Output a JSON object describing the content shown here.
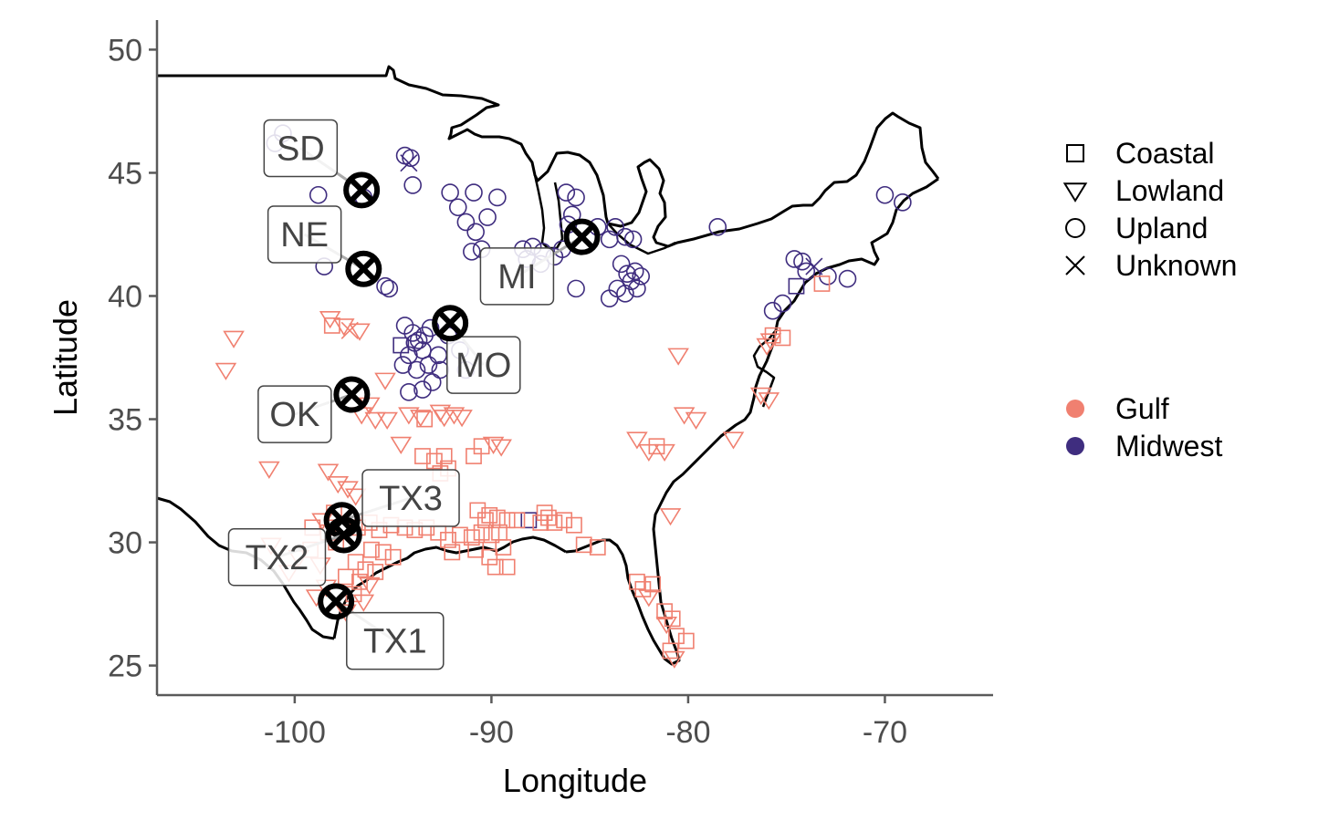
{
  "chart_data": {
    "type": "scatter",
    "xlabel": "Longitude",
    "ylabel": "Latitude",
    "xlim": [
      -107,
      -64.5
    ],
    "ylim": [
      23.8,
      51.2
    ],
    "xticks": [
      -100,
      -90,
      -80,
      -70
    ],
    "yticks": [
      25,
      30,
      35,
      40,
      45,
      50
    ],
    "grid": false,
    "colors": {
      "Gulf": "#f08070",
      "Midwest": "#3f2d7f",
      "sites": "#000000",
      "map": "#000000"
    },
    "legend_shapes": {
      "placement": "right",
      "entries": [
        {
          "label": "Coastal",
          "shape": "square"
        },
        {
          "label": "Lowland",
          "shape": "triangle-down"
        },
        {
          "label": "Upland",
          "shape": "circle"
        },
        {
          "label": "Unknown",
          "shape": "cross"
        }
      ]
    },
    "legend_colors": {
      "placement": "right",
      "entries": [
        {
          "label": "Gulf",
          "color": "#f08070"
        },
        {
          "label": "Midwest",
          "color": "#3f2d7f"
        }
      ]
    },
    "sites": [
      {
        "label": "SD",
        "lon": -96.6,
        "lat": 44.3,
        "label_lon": -99.7,
        "label_lat": 46.0
      },
      {
        "label": "NE",
        "lon": -96.5,
        "lat": 41.1,
        "label_lon": -99.5,
        "label_lat": 42.5
      },
      {
        "label": "MI",
        "lon": -85.4,
        "lat": 42.4,
        "label_lon": -88.7,
        "label_lat": 40.8
      },
      {
        "label": "MO",
        "lon": -92.1,
        "lat": 38.9,
        "label_lon": -90.4,
        "label_lat": 37.2
      },
      {
        "label": "OK",
        "lon": -97.1,
        "lat": 36.0,
        "label_lon": -100.0,
        "label_lat": 35.2
      },
      {
        "label": "TX3",
        "lon": -97.6,
        "lat": 30.9,
        "label_lon": -94.1,
        "label_lat": 31.8
      },
      {
        "label": "TX2",
        "lon": -97.5,
        "lat": 30.3,
        "label_lon": -100.9,
        "label_lat": 29.4
      },
      {
        "label": "TX1",
        "lon": -97.9,
        "lat": 27.6,
        "label_lon": -94.9,
        "label_lat": 26.0
      }
    ],
    "series": [
      {
        "name": "Midwest",
        "points": [
          [
            -100.6,
            46.6,
            "circle"
          ],
          [
            -101,
            46.2,
            "circle"
          ],
          [
            -98.8,
            44.1,
            "circle"
          ],
          [
            -96.5,
            44.0,
            "circle"
          ],
          [
            -94.4,
            45.7,
            "circle"
          ],
          [
            -94.1,
            45.6,
            "circle"
          ],
          [
            -94.2,
            45.4,
            "cross"
          ],
          [
            -94.0,
            44.5,
            "circle"
          ],
          [
            -92.1,
            44.2,
            "circle"
          ],
          [
            -91.7,
            43.6,
            "circle"
          ],
          [
            -90.9,
            44.2,
            "circle"
          ],
          [
            -89.7,
            44.0,
            "circle"
          ],
          [
            -91.3,
            43.0,
            "circle"
          ],
          [
            -90.8,
            42.6,
            "circle"
          ],
          [
            -90.2,
            43.2,
            "circle"
          ],
          [
            -90.5,
            41.9,
            "circle"
          ],
          [
            -91.0,
            41.8,
            "circle"
          ],
          [
            -88.4,
            41.9,
            "circle"
          ],
          [
            -87.9,
            42.0,
            "circle"
          ],
          [
            -87.4,
            41.8,
            "circle"
          ],
          [
            -88.2,
            41.5,
            "circle"
          ],
          [
            -87.5,
            41.3,
            "circle"
          ],
          [
            -86.8,
            41.6,
            "circle"
          ],
          [
            -86.4,
            41.9,
            "circle"
          ],
          [
            -86.2,
            44.2,
            "circle"
          ],
          [
            -85.7,
            44.0,
            "circle"
          ],
          [
            -85.9,
            43.3,
            "circle"
          ],
          [
            -86.1,
            42.9,
            "circle"
          ],
          [
            -84.6,
            42.8,
            "circle"
          ],
          [
            -84.0,
            42.3,
            "circle"
          ],
          [
            -83.7,
            42.8,
            "circle"
          ],
          [
            -83.2,
            42.4,
            "circle"
          ],
          [
            -82.8,
            42.3,
            "circle"
          ],
          [
            -83.4,
            41.3,
            "circle"
          ],
          [
            -83.1,
            40.9,
            "circle"
          ],
          [
            -82.9,
            40.6,
            "circle"
          ],
          [
            -83.6,
            40.3,
            "circle"
          ],
          [
            -83.2,
            40.1,
            "circle"
          ],
          [
            -82.6,
            40.3,
            "circle"
          ],
          [
            -82.4,
            40.8,
            "circle"
          ],
          [
            -82.7,
            41.0,
            "circle"
          ],
          [
            -85.7,
            40.3,
            "circle"
          ],
          [
            -84.0,
            39.9,
            "circle"
          ],
          [
            -98.5,
            41.2,
            "circle"
          ],
          [
            -95.4,
            40.4,
            "circle"
          ],
          [
            -95.2,
            40.3,
            "circle"
          ],
          [
            -94.4,
            38.8,
            "circle"
          ],
          [
            -94.0,
            38.5,
            "circle"
          ],
          [
            -93.7,
            38.2,
            "circle"
          ],
          [
            -93.4,
            38.4,
            "circle"
          ],
          [
            -93.1,
            38.7,
            "circle"
          ],
          [
            -93.9,
            38.1,
            "circle"
          ],
          [
            -94.6,
            38.0,
            "square"
          ],
          [
            -94.2,
            37.6,
            "circle"
          ],
          [
            -93.5,
            37.8,
            "circle"
          ],
          [
            -93.2,
            37.2,
            "circle"
          ],
          [
            -93.8,
            37.0,
            "circle"
          ],
          [
            -94.5,
            37.2,
            "circle"
          ],
          [
            -92.7,
            37.6,
            "circle"
          ],
          [
            -92.2,
            38.4,
            "circle"
          ],
          [
            -91.6,
            37.8,
            "circle"
          ],
          [
            -91.3,
            37.0,
            "circle"
          ],
          [
            -94.2,
            36.1,
            "circle"
          ],
          [
            -93.5,
            36.2,
            "circle"
          ],
          [
            -93.0,
            36.5,
            "circle"
          ],
          [
            -92.6,
            37.0,
            "circle"
          ],
          [
            -88.1,
            30.9,
            "square"
          ],
          [
            -78.5,
            42.8,
            "circle"
          ],
          [
            -74.6,
            41.5,
            "circle"
          ],
          [
            -74.2,
            41.4,
            "circle"
          ],
          [
            -74.0,
            41.0,
            "circle"
          ],
          [
            -73.6,
            41.2,
            "cross"
          ],
          [
            -72.9,
            40.8,
            "circle"
          ],
          [
            -71.9,
            40.7,
            "circle"
          ],
          [
            -74.5,
            40.4,
            "square"
          ],
          [
            -75.2,
            39.7,
            "circle"
          ],
          [
            -75.7,
            39.4,
            "circle"
          ],
          [
            -70.0,
            44.1,
            "circle"
          ],
          [
            -69.1,
            43.8,
            "circle"
          ]
        ]
      },
      {
        "name": "Gulf",
        "points": [
          [
            -103.1,
            38.3,
            "triangle-down"
          ],
          [
            -103.5,
            37.0,
            "triangle-down"
          ],
          [
            -101.3,
            33.0,
            "triangle-down"
          ],
          [
            -98.2,
            39.1,
            "triangle-down"
          ],
          [
            -97.5,
            38.8,
            "triangle-down"
          ],
          [
            -97.2,
            38.6,
            "cross"
          ],
          [
            -96.7,
            38.6,
            "triangle-down"
          ],
          [
            -98.1,
            38.8,
            "square"
          ],
          [
            -95.4,
            36.6,
            "triangle-down"
          ],
          [
            -96.2,
            35.6,
            "triangle-down"
          ],
          [
            -96.6,
            35.2,
            "triangle-down"
          ],
          [
            -95.9,
            35.0,
            "triangle-down"
          ],
          [
            -95.3,
            35.0,
            "triangle-down"
          ],
          [
            -94.2,
            35.2,
            "triangle-down"
          ],
          [
            -93.6,
            35.1,
            "triangle-down"
          ],
          [
            -93.4,
            35.0,
            "square"
          ],
          [
            -92.6,
            35.3,
            "triangle-down"
          ],
          [
            -92.4,
            35.1,
            "triangle-down"
          ],
          [
            -91.9,
            35.2,
            "triangle-down"
          ],
          [
            -91.5,
            35.1,
            "triangle-down"
          ],
          [
            -94.6,
            34.0,
            "triangle-down"
          ],
          [
            -93.5,
            33.5,
            "square"
          ],
          [
            -92.9,
            33.3,
            "square"
          ],
          [
            -92.4,
            33.5,
            "square"
          ],
          [
            -92.6,
            32.8,
            "square"
          ],
          [
            -92.2,
            33.0,
            "square"
          ],
          [
            -90.9,
            33.5,
            "square"
          ],
          [
            -90.5,
            33.9,
            "square"
          ],
          [
            -89.9,
            34.0,
            "triangle-down"
          ],
          [
            -89.5,
            33.9,
            "triangle-down"
          ],
          [
            -80.2,
            35.2,
            "triangle-down"
          ],
          [
            -79.6,
            35.0,
            "triangle-down"
          ],
          [
            -80.5,
            37.6,
            "triangle-down"
          ],
          [
            -82.6,
            34.2,
            "triangle-down"
          ],
          [
            -82.0,
            33.7,
            "triangle-down"
          ],
          [
            -81.6,
            33.9,
            "square"
          ],
          [
            -81.2,
            33.7,
            "triangle-down"
          ],
          [
            -77.7,
            34.2,
            "triangle-down"
          ],
          [
            -76.3,
            36.0,
            "triangle-down"
          ],
          [
            -75.9,
            35.8,
            "triangle-down"
          ],
          [
            -76.0,
            38.0,
            "triangle-down"
          ],
          [
            -75.7,
            38.4,
            "square"
          ],
          [
            -75.2,
            38.3,
            "square"
          ],
          [
            -73.2,
            40.5,
            "square"
          ],
          [
            -75.8,
            38.2,
            "triangle-down"
          ],
          [
            -98.3,
            32.9,
            "triangle-down"
          ],
          [
            -97.8,
            32.4,
            "triangle-down"
          ],
          [
            -97.3,
            32.2,
            "triangle-down"
          ],
          [
            -96.9,
            31.9,
            "triangle-down"
          ],
          [
            -98.0,
            31.2,
            "square"
          ],
          [
            -98.6,
            30.9,
            "triangle-down"
          ],
          [
            -99.1,
            30.6,
            "square"
          ],
          [
            -98.3,
            30.4,
            "square"
          ],
          [
            -97.9,
            30.0,
            "square"
          ],
          [
            -96.8,
            30.6,
            "square"
          ],
          [
            -96.2,
            30.8,
            "square"
          ],
          [
            -95.7,
            30.5,
            "square"
          ],
          [
            -95.1,
            30.7,
            "square"
          ],
          [
            -94.4,
            30.6,
            "square"
          ],
          [
            -93.9,
            30.5,
            "square"
          ],
          [
            -93.3,
            30.6,
            "square"
          ],
          [
            -92.7,
            30.4,
            "square"
          ],
          [
            -92.2,
            30.1,
            "square"
          ],
          [
            -91.6,
            30.3,
            "square"
          ],
          [
            -91.0,
            30.2,
            "square"
          ],
          [
            -90.5,
            30.4,
            "square"
          ],
          [
            -90.0,
            30.3,
            "square"
          ],
          [
            -89.6,
            30.4,
            "square"
          ],
          [
            -89.4,
            29.8,
            "square"
          ],
          [
            -90.3,
            30.9,
            "square"
          ],
          [
            -90.7,
            31.3,
            "square"
          ],
          [
            -90.1,
            31.1,
            "square"
          ],
          [
            -89.7,
            31.0,
            "square"
          ],
          [
            -89.2,
            30.9,
            "square"
          ],
          [
            -88.7,
            30.9,
            "square"
          ],
          [
            -87.5,
            30.8,
            "square"
          ],
          [
            -87.1,
            31.0,
            "square"
          ],
          [
            -86.8,
            30.8,
            "square"
          ],
          [
            -86.3,
            30.9,
            "square"
          ],
          [
            -85.8,
            30.7,
            "square"
          ],
          [
            -87.3,
            31.2,
            "square"
          ],
          [
            -92.0,
            29.6,
            "square"
          ],
          [
            -90.1,
            29.4,
            "square"
          ],
          [
            -89.8,
            29.0,
            "square"
          ],
          [
            -89.2,
            29.0,
            "square"
          ],
          [
            -90.8,
            29.7,
            "square"
          ],
          [
            -96.1,
            29.7,
            "square"
          ],
          [
            -95.5,
            29.6,
            "square"
          ],
          [
            -95.0,
            29.4,
            "square"
          ],
          [
            -96.9,
            29.2,
            "square"
          ],
          [
            -96.4,
            28.9,
            "square"
          ],
          [
            -95.9,
            28.8,
            "square"
          ],
          [
            -97.4,
            28.6,
            "square"
          ],
          [
            -96.7,
            28.4,
            "square"
          ],
          [
            -96.2,
            28.3,
            "triangle-down"
          ],
          [
            -97.0,
            27.9,
            "square"
          ],
          [
            -96.5,
            27.6,
            "triangle-down"
          ],
          [
            -98.4,
            28.2,
            "triangle-down"
          ],
          [
            -98.9,
            27.8,
            "triangle-down"
          ],
          [
            -97.4,
            27.2,
            "triangle-down"
          ],
          [
            -98.7,
            29.1,
            "triangle-down"
          ],
          [
            -99.8,
            29.4,
            "triangle-down"
          ],
          [
            -101.2,
            29.9,
            "triangle-down"
          ],
          [
            -100.3,
            28.8,
            "triangle-down"
          ],
          [
            -99.2,
            29.7,
            "square"
          ],
          [
            -85.3,
            29.9,
            "square"
          ],
          [
            -84.6,
            29.8,
            "square"
          ],
          [
            -80.9,
            31.1,
            "triangle-down"
          ],
          [
            -82.3,
            28.1,
            "square"
          ],
          [
            -81.8,
            28.3,
            "square"
          ],
          [
            -82.6,
            28.4,
            "square"
          ],
          [
            -82.0,
            27.8,
            "triangle-down"
          ],
          [
            -81.2,
            27.2,
            "square"
          ],
          [
            -80.8,
            26.9,
            "square"
          ],
          [
            -80.6,
            26.2,
            "square"
          ],
          [
            -80.1,
            26.0,
            "square"
          ],
          [
            -80.9,
            25.6,
            "square"
          ],
          [
            -80.7,
            25.3,
            "triangle-down"
          ],
          [
            -81.1,
            26.7,
            "triangle-down"
          ]
        ]
      }
    ]
  }
}
